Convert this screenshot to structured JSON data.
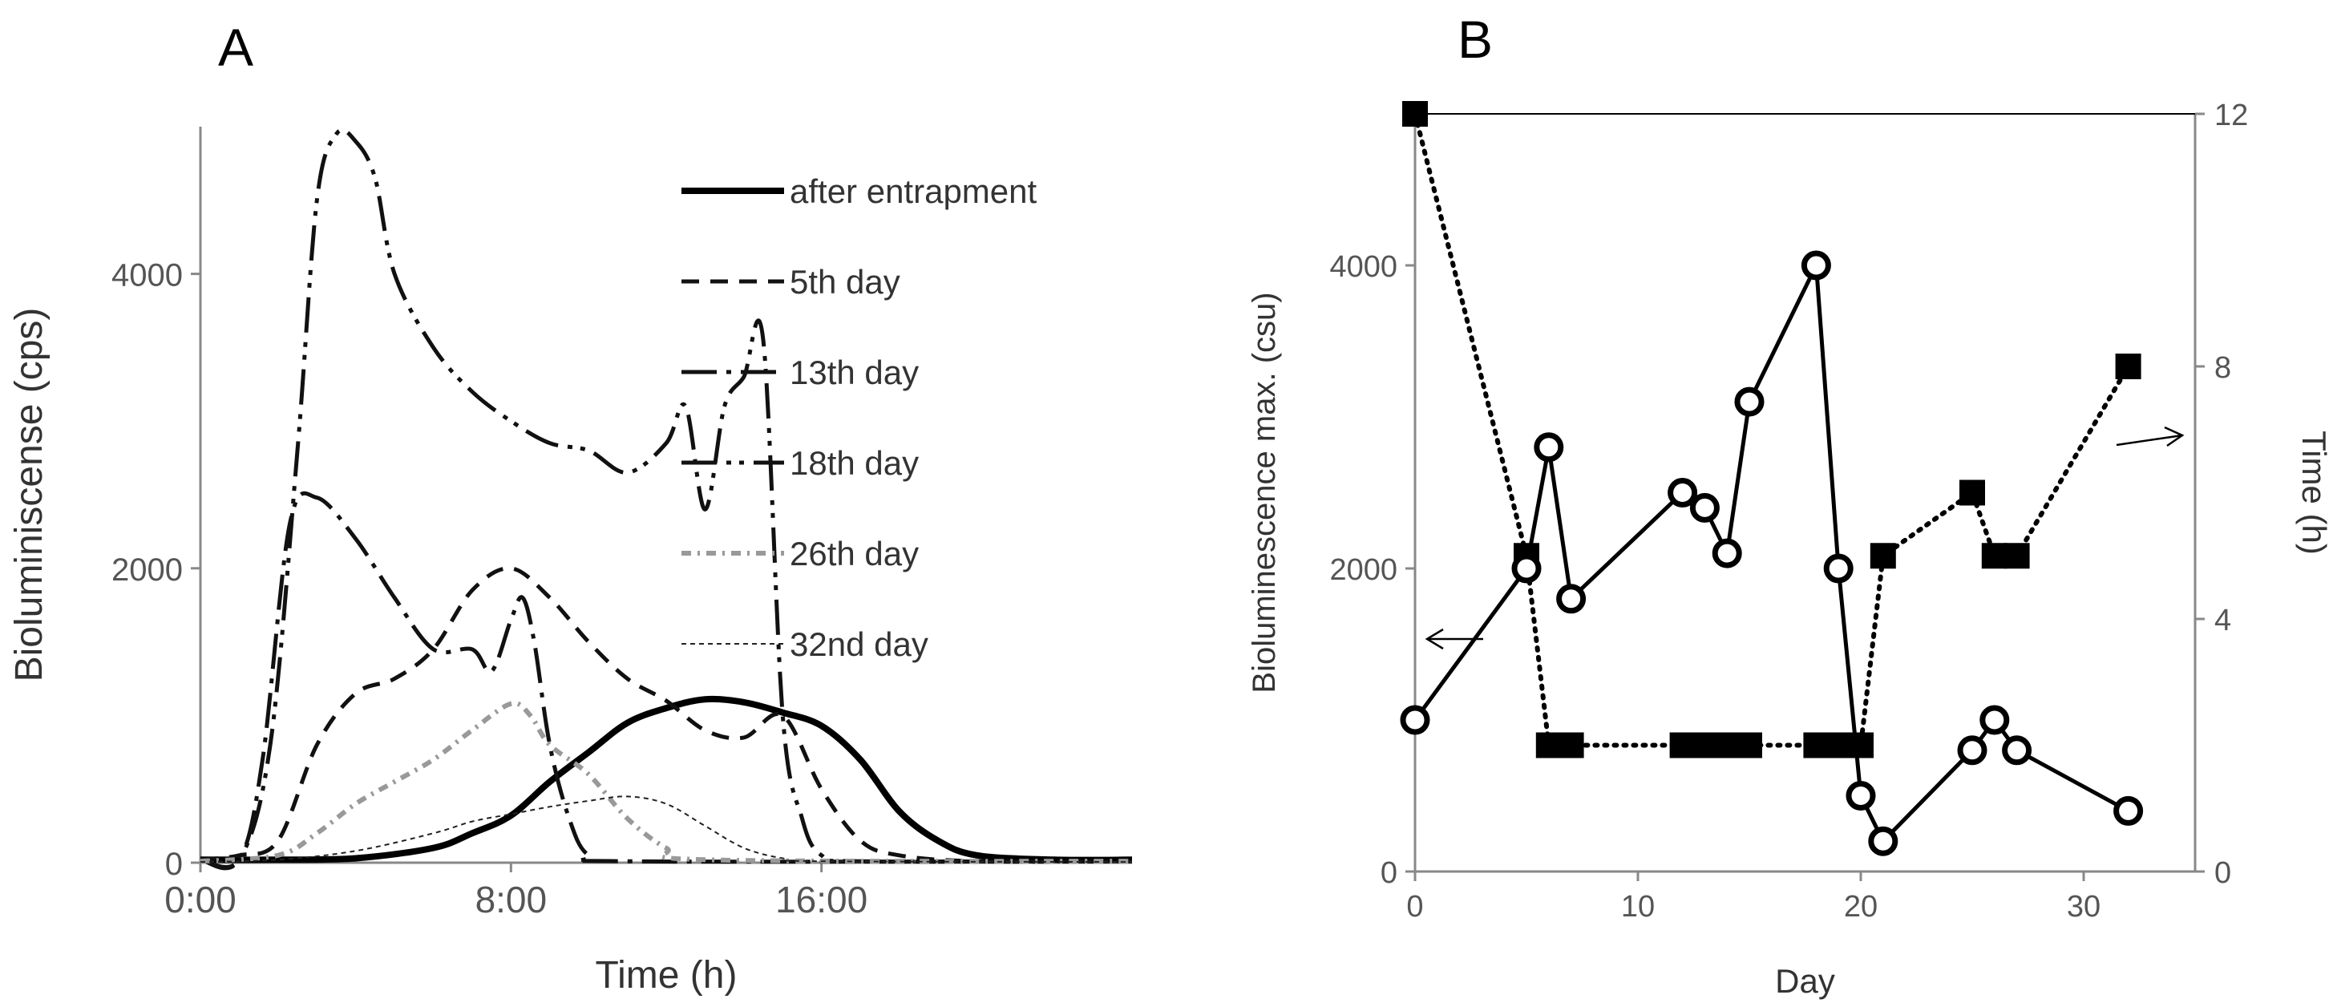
{
  "chart_data": [
    {
      "panel": "A",
      "type": "line",
      "xlabel": "Time (h)",
      "ylabel": "Bioluminiscense (cps)",
      "xlim": [
        0,
        24
      ],
      "ylim": [
        0,
        5000
      ],
      "xticks": [
        0,
        8,
        16
      ],
      "xtick_labels": [
        "0:00",
        "8:00",
        "16:00"
      ],
      "yticks": [
        0,
        2000,
        4000
      ],
      "ytick_labels": [
        "0",
        "2000",
        "4000"
      ],
      "legend_position": "top-right",
      "series": [
        {
          "name": "after entrapment",
          "style": "thick-solid",
          "points": [
            [
              0,
              20
            ],
            [
              2,
              20
            ],
            [
              4,
              30
            ],
            [
              6,
              100
            ],
            [
              7,
              200
            ],
            [
              8,
              320
            ],
            [
              9,
              550
            ],
            [
              10,
              750
            ],
            [
              11,
              950
            ],
            [
              12,
              1050
            ],
            [
              13,
              1110
            ],
            [
              14,
              1090
            ],
            [
              15,
              1020
            ],
            [
              16,
              930
            ],
            [
              17,
              700
            ],
            [
              18,
              350
            ],
            [
              19,
              150
            ],
            [
              20,
              50
            ],
            [
              22,
              20
            ],
            [
              24,
              20
            ]
          ]
        },
        {
          "name": "5th day",
          "style": "dash",
          "points": [
            [
              0,
              20
            ],
            [
              1,
              50
            ],
            [
              2,
              150
            ],
            [
              3,
              800
            ],
            [
              4,
              1150
            ],
            [
              5,
              1250
            ],
            [
              6,
              1450
            ],
            [
              7,
              1850
            ],
            [
              8,
              2000
            ],
            [
              9,
              1800
            ],
            [
              10,
              1500
            ],
            [
              11,
              1250
            ],
            [
              12,
              1100
            ],
            [
              13,
              900
            ],
            [
              14,
              850
            ],
            [
              15,
              1000
            ],
            [
              16,
              500
            ],
            [
              17,
              150
            ],
            [
              18,
              50
            ],
            [
              20,
              10
            ],
            [
              24,
              10
            ]
          ]
        },
        {
          "name": "13th day",
          "style": "long-dash-dot",
          "points": [
            [
              0,
              20
            ],
            [
              1,
              20
            ],
            [
              1.6,
              700
            ],
            [
              2.3,
              2300
            ],
            [
              3,
              2480
            ],
            [
              4,
              2200
            ],
            [
              5,
              1800
            ],
            [
              6,
              1450
            ],
            [
              7,
              1450
            ],
            [
              7.5,
              1300
            ],
            [
              8,
              1650
            ],
            [
              8.3,
              1800
            ],
            [
              8.6,
              1500
            ],
            [
              9,
              800
            ],
            [
              9.5,
              300
            ],
            [
              10,
              50
            ],
            [
              11,
              10
            ],
            [
              24,
              10
            ]
          ]
        },
        {
          "name": "18th day",
          "style": "long-dash-dot-dot",
          "points": [
            [
              0,
              20
            ],
            [
              1,
              20
            ],
            [
              1.8,
              800
            ],
            [
              2.5,
              2800
            ],
            [
              3,
              4500
            ],
            [
              3.5,
              4950
            ],
            [
              4,
              4900
            ],
            [
              4.5,
              4650
            ],
            [
              5,
              4000
            ],
            [
              6,
              3500
            ],
            [
              7,
              3200
            ],
            [
              8,
              3000
            ],
            [
              9,
              2850
            ],
            [
              10,
              2800
            ],
            [
              11,
              2650
            ],
            [
              12,
              2850
            ],
            [
              12.5,
              3100
            ],
            [
              13,
              2400
            ],
            [
              13.5,
              3100
            ],
            [
              14,
              3300
            ],
            [
              14.5,
              3550
            ],
            [
              15,
              1000
            ],
            [
              15.5,
              300
            ],
            [
              16,
              50
            ],
            [
              17,
              10
            ],
            [
              24,
              10
            ]
          ]
        },
        {
          "name": "26th day",
          "style": "dotted-dash",
          "points": [
            [
              0,
              10
            ],
            [
              2,
              50
            ],
            [
              3,
              200
            ],
            [
              4,
              400
            ],
            [
              5,
              550
            ],
            [
              6,
              700
            ],
            [
              7,
              900
            ],
            [
              8,
              1080
            ],
            [
              8.5,
              1000
            ],
            [
              9,
              800
            ],
            [
              10,
              600
            ],
            [
              11,
              300
            ],
            [
              12,
              100
            ],
            [
              13,
              20
            ],
            [
              24,
              10
            ]
          ]
        },
        {
          "name": "32nd day",
          "style": "fine-dash",
          "points": [
            [
              0,
              5
            ],
            [
              2,
              20
            ],
            [
              4,
              80
            ],
            [
              6,
              200
            ],
            [
              7,
              280
            ],
            [
              8,
              330
            ],
            [
              9,
              380
            ],
            [
              10,
              420
            ],
            [
              11,
              450
            ],
            [
              12,
              400
            ],
            [
              13,
              250
            ],
            [
              14,
              100
            ],
            [
              15,
              30
            ],
            [
              16,
              10
            ],
            [
              24,
              5
            ]
          ]
        }
      ]
    },
    {
      "panel": "B",
      "type": "line",
      "xlabel": "Day",
      "ylabel": "Bioluminescence max. (csu)",
      "y2label": "Time (h)",
      "xlim": [
        0,
        35
      ],
      "ylim": [
        0,
        5000
      ],
      "y2lim": [
        0,
        12
      ],
      "xticks": [
        0,
        10,
        20,
        30
      ],
      "xtick_labels": [
        "0",
        "10",
        "20",
        "30"
      ],
      "yticks": [
        0,
        2000,
        4000
      ],
      "ytick_labels": [
        "0",
        "2000",
        "4000"
      ],
      "y2ticks": [
        0,
        4,
        8,
        12
      ],
      "y2tick_labels": [
        "0",
        "4",
        "8",
        "12"
      ],
      "series": [
        {
          "name": "Bioluminescence max.",
          "axis": "left",
          "marker": "open-circle",
          "line": "solid",
          "x": [
            0,
            5,
            6,
            7,
            12,
            13,
            14,
            15,
            18,
            19,
            20,
            21,
            25,
            26,
            27,
            32
          ],
          "y": [
            1000,
            2000,
            2800,
            1800,
            2500,
            2400,
            2100,
            3100,
            4000,
            2000,
            500,
            200,
            800,
            1000,
            800,
            400
          ]
        },
        {
          "name": "Time",
          "axis": "right",
          "marker": "filled-square",
          "line": "dotted",
          "x": [
            0,
            5,
            6,
            7,
            12,
            13,
            14,
            15,
            18,
            19,
            20,
            21,
            25,
            26,
            27,
            32
          ],
          "y": [
            12,
            5,
            2,
            2,
            2,
            2,
            2,
            2,
            2,
            2,
            2,
            5,
            6,
            5,
            5,
            8
          ]
        }
      ]
    }
  ]
}
